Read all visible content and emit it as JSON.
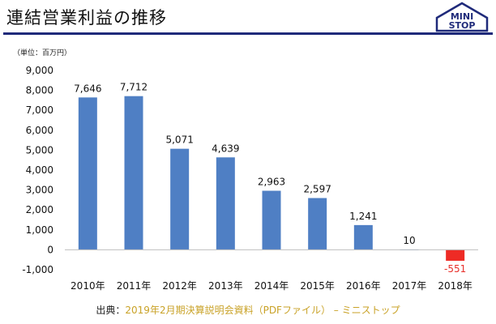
{
  "header": {
    "title": "連結営業利益の推移",
    "logo_line1": "MINI",
    "logo_line2": "STOP",
    "logo_color": "#1f2a7a"
  },
  "unit_label": "（単位：百万円）",
  "source": {
    "prefix": "出典：",
    "text": "2019年2月期決算説明会資料（PDFファイル） – ミニストップ"
  },
  "chart_data": {
    "type": "bar",
    "categories": [
      "2010年",
      "2011年",
      "2012年",
      "2013年",
      "2014年",
      "2015年",
      "2016年",
      "2017年",
      "2018年"
    ],
    "values": [
      7646,
      7712,
      5071,
      4639,
      2963,
      2597,
      1241,
      10,
      -551
    ],
    "data_labels": [
      "7,646",
      "7,712",
      "5,071",
      "4,639",
      "2,963",
      "2,597",
      "1,241",
      "10",
      "-551"
    ],
    "yticks": [
      9000,
      8000,
      7000,
      6000,
      5000,
      4000,
      3000,
      2000,
      1000,
      0,
      -1000
    ],
    "ytick_labels": [
      "9,000",
      "8,000",
      "7,000",
      "6,000",
      "5,000",
      "4,000",
      "3,000",
      "2,000",
      "1,000",
      "0",
      "-1,000"
    ],
    "ylim": [
      -1000,
      9000
    ],
    "colors": {
      "positive": "#4f7fc4",
      "negative": "#ee2b25"
    },
    "grid": false,
    "title": "",
    "xlabel": "",
    "ylabel": ""
  }
}
